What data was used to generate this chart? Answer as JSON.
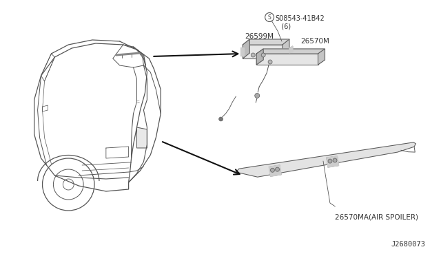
{
  "bg_color": "#ffffff",
  "part_labels": {
    "screw_label": "S08543-41B42\n   (6)",
    "label_26599M": "26599M",
    "label_26570M": "26570M",
    "label_spoiler": "26570MA(AIR SPOILER)"
  },
  "footer": "J2680073",
  "text_color": "#333333",
  "line_color": "#555555",
  "font_size": 7.5
}
